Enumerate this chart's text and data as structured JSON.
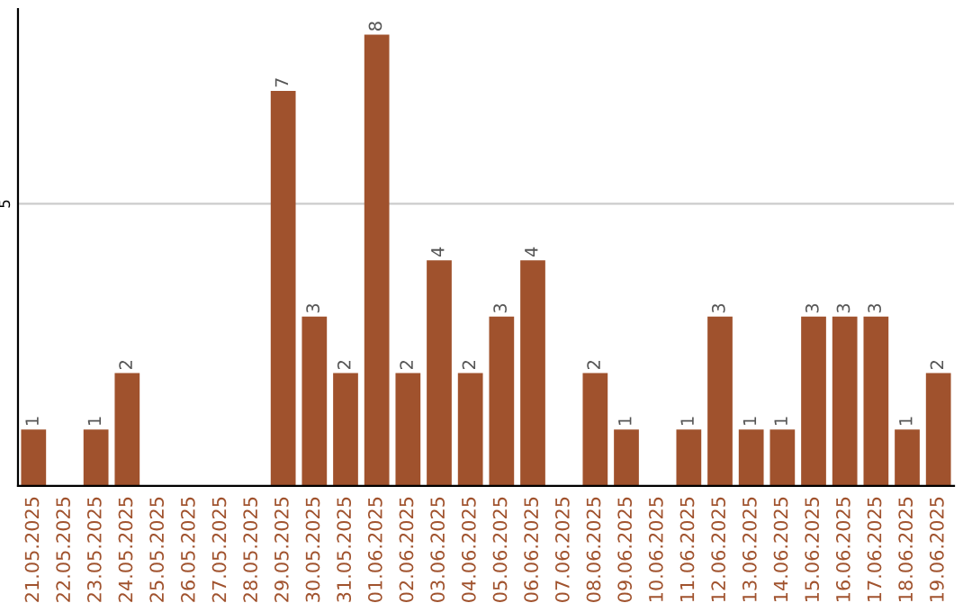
{
  "chart_data": {
    "type": "bar",
    "categories": [
      "21.05.2025",
      "22.05.2025",
      "23.05.2025",
      "24.05.2025",
      "25.05.2025",
      "26.05.2025",
      "27.05.2025",
      "28.05.2025",
      "29.05.2025",
      "30.05.2025",
      "31.05.2025",
      "01.06.2025",
      "02.06.2025",
      "03.06.2025",
      "04.06.2025",
      "05.06.2025",
      "06.06.2025",
      "07.06.2025",
      "08.06.2025",
      "09.06.2025",
      "10.06.2025",
      "11.06.2025",
      "12.06.2025",
      "13.06.2025",
      "14.06.2025",
      "15.06.2025",
      "16.06.2025",
      "17.06.2025",
      "18.06.2025",
      "19.06.2025"
    ],
    "values": [
      1,
      0,
      1,
      2,
      0,
      0,
      0,
      0,
      7,
      3,
      2,
      8,
      2,
      4,
      2,
      3,
      4,
      0,
      2,
      1,
      0,
      1,
      3,
      1,
      1,
      3,
      3,
      3,
      1,
      2
    ],
    "value_labels": [
      "1",
      null,
      "1",
      "2",
      null,
      null,
      null,
      null,
      "7",
      "3",
      "2",
      "8",
      "2",
      "4",
      "2",
      "3",
      "4",
      null,
      "2",
      "1",
      null,
      "1",
      "3",
      "1",
      "1",
      "3",
      "3",
      "3",
      "1",
      "2"
    ],
    "color": "#a0522d",
    "ylim": [
      0,
      8.45
    ],
    "yticks": [
      5
    ],
    "grid": "y"
  }
}
